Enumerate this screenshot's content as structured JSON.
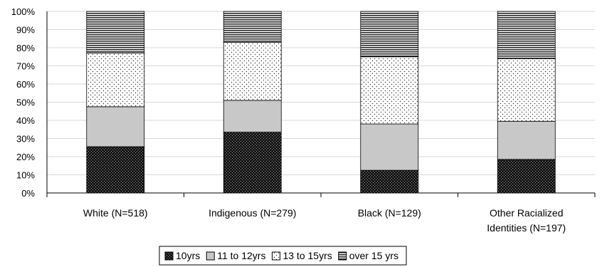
{
  "chart_data": {
    "type": "bar",
    "stacked": true,
    "title": "",
    "xlabel": "",
    "ylabel": "",
    "ylim": [
      0,
      100
    ],
    "y_tick_labels": [
      "0%",
      "10%",
      "20%",
      "30%",
      "40%",
      "50%",
      "60%",
      "70%",
      "80%",
      "90%",
      "100%"
    ],
    "categories": [
      [
        "White (N=518)"
      ],
      [
        "Indigenous (N=279)"
      ],
      [
        "Black (N=129)"
      ],
      [
        "Other Racialized",
        "Identities  (N=197)"
      ]
    ],
    "series": [
      {
        "name": "10yrs",
        "pattern": "dark-dots",
        "values": [
          25.5,
          33.5,
          12.5,
          18.5
        ]
      },
      {
        "name": "11 to 12yrs",
        "pattern": "solid-gray",
        "values": [
          22.0,
          17.5,
          25.5,
          21.0
        ]
      },
      {
        "name": "13 to 15yrs",
        "pattern": "light-dots",
        "values": [
          29.5,
          32.0,
          37.0,
          34.5
        ]
      },
      {
        "name": "over 15 yrs",
        "pattern": "horizontal-lines",
        "values": [
          23.0,
          17.0,
          25.0,
          26.0
        ]
      }
    ],
    "grid": true,
    "legend_position": "bottom"
  }
}
